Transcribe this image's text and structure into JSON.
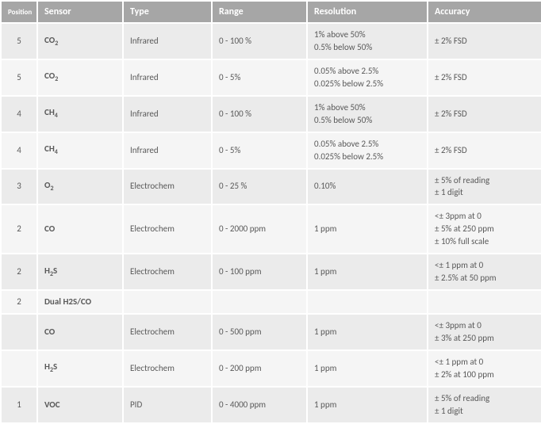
{
  "colors": {
    "header_bg": "#a6a6a6",
    "header_fg": "#ffffff",
    "row_alt_a": "#ebebeb",
    "row_alt_b": "#f5f5f5",
    "text": "#595959"
  },
  "columns": [
    {
      "key": "position",
      "label": "Position"
    },
    {
      "key": "sensor",
      "label": "Sensor"
    },
    {
      "key": "type",
      "label": "Type"
    },
    {
      "key": "range",
      "label": "Range"
    },
    {
      "key": "resolution",
      "label": "Resolution"
    },
    {
      "key": "accuracy",
      "label": "Accuracy"
    }
  ],
  "rows": [
    {
      "position": "5",
      "sensor_html": "CO<sub>2</sub>",
      "type": "Infrared",
      "range": "0 - 100 %",
      "resolution": "1% above 50%\n0.5% below 50%",
      "accuracy": "± 2% FSD"
    },
    {
      "position": "5",
      "sensor_html": "CO<sub>2</sub>",
      "type": "Infrared",
      "range": "0 - 5%",
      "resolution": "0.05% above 2.5%\n0.025% below 2.5%",
      "accuracy": "± 2% FSD"
    },
    {
      "position": "4",
      "sensor_html": "CH<sub>4</sub>",
      "type": "Infrared",
      "range": "0 - 100 %",
      "resolution": "1% above 50%\n0.5% below 50%",
      "accuracy": "± 2% FSD"
    },
    {
      "position": "4",
      "sensor_html": "CH<sub>4</sub>",
      "type": "Infrared",
      "range": "0 - 5%",
      "resolution": "0.05% above 2.5%\n0.025% below 2.5%",
      "accuracy": " ± 2% FSD"
    },
    {
      "position": "3",
      "sensor_html": "O<sub>2</sub>",
      "type": "Electrochem",
      "range": "0 - 25 %",
      "resolution": "0.10%",
      "accuracy": "± 5% of reading\n± 1 digit"
    },
    {
      "position": "2",
      "sensor_html": "CO",
      "type": "Electrochem",
      "range": "0 - 2000 ppm",
      "resolution": "1 ppm",
      "accuracy": "<± 3ppm at 0\n± 5% at 250 ppm\n± 10% full scale"
    },
    {
      "position": "2",
      "sensor_html": "H<sub>2</sub>S",
      "type": "Electrochem",
      "range": "0 - 100 ppm",
      "resolution": "1 ppm",
      "accuracy": "<± 1 ppm at 0\n± 2.5% at 50 ppm"
    },
    {
      "position": "2",
      "sensor_html": "Dual H2S/CO",
      "type": "",
      "range": "",
      "resolution": "",
      "accuracy": ""
    },
    {
      "position": "",
      "sensor_html": "CO",
      "type": "Electrochem",
      "range": "0 - 500 ppm",
      "resolution": "1 ppm",
      "accuracy": "<± 3ppm at 0\n± 3%  at 250 ppm"
    },
    {
      "position": "",
      "sensor_html": "H<sub>2</sub>S",
      "type": "Electrochem",
      "range": "0 - 200 ppm",
      "resolution": "1 ppm",
      "accuracy": "<± 1 ppm at 0\n± 2% at 100 ppm"
    },
    {
      "position": "1",
      "sensor_html": "VOC",
      "type": "PID",
      "range": "0 - 4000 ppm",
      "resolution": "1 ppm",
      "accuracy": "± 5% of reading\n± 1 digit"
    }
  ]
}
